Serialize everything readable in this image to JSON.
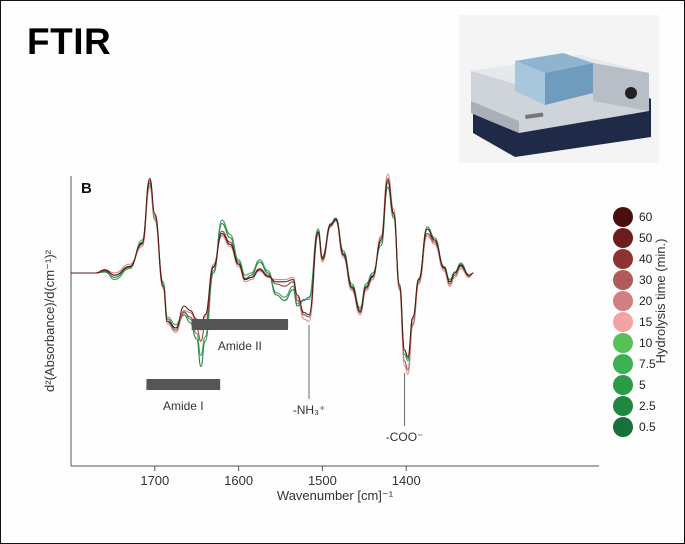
{
  "slide": {
    "title": "FTIR"
  },
  "chart_data": {
    "type": "line",
    "panel_label": "B",
    "title": "",
    "xlabel": "Wavenumber [cm]⁻¹",
    "ylabel": "d²(Absorbance)/d(cm⁻¹)²",
    "xlim": [
      1800,
      1170
    ],
    "x_reversed": true,
    "xticks": [
      1700,
      1600,
      1500,
      1400
    ],
    "grid": false,
    "legend_position": "right",
    "legend_title": "Hydrolysis time (min.)",
    "legend_entries": [
      {
        "label": "60",
        "color": "#4a1010"
      },
      {
        "label": "50",
        "color": "#6e1c1c"
      },
      {
        "label": "40",
        "color": "#8f3232"
      },
      {
        "label": "30",
        "color": "#b05a5a"
      },
      {
        "label": "20",
        "color": "#d27f7f"
      },
      {
        "label": "15",
        "color": "#f2a3a3"
      },
      {
        "label": "10",
        "color": "#58c05a"
      },
      {
        "label": "7.5",
        "color": "#3fb052"
      },
      {
        "label": "5",
        "color": "#2a9c48"
      },
      {
        "label": "2.5",
        "color": "#1f8840"
      },
      {
        "label": "0.5",
        "color": "#177238"
      }
    ],
    "annotations": [
      {
        "label": "Amide I",
        "x_range": [
          1710,
          1622
        ],
        "kind": "bar"
      },
      {
        "label": "Amide II",
        "x_range": [
          1656,
          1541
        ],
        "kind": "bar"
      },
      {
        "label": "-NH₃⁺",
        "x": 1516,
        "kind": "line"
      },
      {
        "label": "-COO⁻",
        "x": 1402,
        "kind": "line"
      }
    ],
    "series": [
      {
        "color": "#177238",
        "values": [
          [
            1800,
            0
          ],
          [
            1770,
            0
          ],
          [
            1760,
            1
          ],
          [
            1748,
            -4
          ],
          [
            1730,
            5
          ],
          [
            1715,
            28
          ],
          [
            1706,
            82
          ],
          [
            1700,
            50
          ],
          [
            1690,
            -10
          ],
          [
            1685,
            -42
          ],
          [
            1675,
            -50
          ],
          [
            1665,
            -38
          ],
          [
            1658,
            -45
          ],
          [
            1650,
            -60
          ],
          [
            1645,
            -85
          ],
          [
            1640,
            -62
          ],
          [
            1630,
            0
          ],
          [
            1620,
            45
          ],
          [
            1610,
            32
          ],
          [
            1600,
            10
          ],
          [
            1592,
            -5
          ],
          [
            1585,
            -2
          ],
          [
            1575,
            10
          ],
          [
            1565,
            0
          ],
          [
            1555,
            -20
          ],
          [
            1545,
            -25
          ],
          [
            1535,
            -15
          ],
          [
            1530,
            -30
          ],
          [
            1522,
            -25
          ],
          [
            1516,
            -22
          ],
          [
            1505,
            40
          ],
          [
            1500,
            15
          ],
          [
            1490,
            45
          ],
          [
            1484,
            50
          ],
          [
            1475,
            20
          ],
          [
            1465,
            -10
          ],
          [
            1455,
            -32
          ],
          [
            1448,
            -10
          ],
          [
            1440,
            0
          ],
          [
            1430,
            25
          ],
          [
            1422,
            78
          ],
          [
            1415,
            50
          ],
          [
            1408,
            -10
          ],
          [
            1402,
            -70
          ],
          [
            1398,
            -78
          ],
          [
            1392,
            -40
          ],
          [
            1385,
            -5
          ],
          [
            1375,
            40
          ],
          [
            1366,
            30
          ],
          [
            1355,
            5
          ],
          [
            1348,
            -8
          ],
          [
            1342,
            0
          ],
          [
            1335,
            8
          ],
          [
            1325,
            -2
          ],
          [
            1320,
            0
          ]
        ]
      },
      {
        "color": "#2a9c48",
        "values": [
          [
            1800,
            0
          ],
          [
            1770,
            0
          ],
          [
            1760,
            2
          ],
          [
            1748,
            -6
          ],
          [
            1730,
            4
          ],
          [
            1715,
            30
          ],
          [
            1706,
            80
          ],
          [
            1700,
            48
          ],
          [
            1690,
            -8
          ],
          [
            1685,
            -40
          ],
          [
            1675,
            -47
          ],
          [
            1665,
            -35
          ],
          [
            1658,
            -42
          ],
          [
            1650,
            -55
          ],
          [
            1645,
            -75
          ],
          [
            1640,
            -58
          ],
          [
            1630,
            2
          ],
          [
            1620,
            48
          ],
          [
            1610,
            35
          ],
          [
            1600,
            12
          ],
          [
            1592,
            -2
          ],
          [
            1585,
            0
          ],
          [
            1575,
            12
          ],
          [
            1565,
            2
          ],
          [
            1555,
            -18
          ],
          [
            1545,
            -22
          ],
          [
            1535,
            -12
          ],
          [
            1530,
            -28
          ],
          [
            1522,
            -24
          ],
          [
            1516,
            -24
          ],
          [
            1505,
            38
          ],
          [
            1500,
            14
          ],
          [
            1490,
            44
          ],
          [
            1484,
            49
          ],
          [
            1475,
            18
          ],
          [
            1465,
            -12
          ],
          [
            1455,
            -34
          ],
          [
            1448,
            -12
          ],
          [
            1440,
            -2
          ],
          [
            1430,
            28
          ],
          [
            1422,
            82
          ],
          [
            1415,
            52
          ],
          [
            1408,
            -12
          ],
          [
            1402,
            -74
          ],
          [
            1398,
            -80
          ],
          [
            1392,
            -42
          ],
          [
            1385,
            -6
          ],
          [
            1375,
            42
          ],
          [
            1366,
            32
          ],
          [
            1355,
            6
          ],
          [
            1348,
            -6
          ],
          [
            1342,
            1
          ],
          [
            1335,
            9
          ],
          [
            1325,
            -2
          ],
          [
            1320,
            0
          ]
        ]
      },
      {
        "color": "#8f3232",
        "values": [
          [
            1800,
            0
          ],
          [
            1770,
            0
          ],
          [
            1760,
            2
          ],
          [
            1748,
            -2
          ],
          [
            1730,
            6
          ],
          [
            1715,
            26
          ],
          [
            1706,
            84
          ],
          [
            1700,
            52
          ],
          [
            1690,
            -12
          ],
          [
            1685,
            -44
          ],
          [
            1675,
            -52
          ],
          [
            1665,
            -36
          ],
          [
            1658,
            -40
          ],
          [
            1650,
            -50
          ],
          [
            1645,
            -62
          ],
          [
            1640,
            -48
          ],
          [
            1630,
            5
          ],
          [
            1620,
            38
          ],
          [
            1610,
            28
          ],
          [
            1600,
            8
          ],
          [
            1592,
            -6
          ],
          [
            1585,
            -4
          ],
          [
            1575,
            4
          ],
          [
            1565,
            -2
          ],
          [
            1555,
            -10
          ],
          [
            1545,
            -12
          ],
          [
            1535,
            -8
          ],
          [
            1530,
            -25
          ],
          [
            1522,
            -38
          ],
          [
            1516,
            -40
          ],
          [
            1505,
            36
          ],
          [
            1500,
            12
          ],
          [
            1490,
            43
          ],
          [
            1484,
            48
          ],
          [
            1475,
            16
          ],
          [
            1465,
            -14
          ],
          [
            1455,
            -36
          ],
          [
            1448,
            -14
          ],
          [
            1440,
            -4
          ],
          [
            1430,
            32
          ],
          [
            1422,
            86
          ],
          [
            1415,
            55
          ],
          [
            1408,
            -14
          ],
          [
            1402,
            -80
          ],
          [
            1398,
            -88
          ],
          [
            1392,
            -46
          ],
          [
            1385,
            -8
          ],
          [
            1375,
            36
          ],
          [
            1366,
            28
          ],
          [
            1355,
            4
          ],
          [
            1348,
            -10
          ],
          [
            1342,
            -2
          ],
          [
            1335,
            6
          ],
          [
            1325,
            -3
          ],
          [
            1320,
            0
          ]
        ]
      },
      {
        "color": "#d27f7f",
        "values": [
          [
            1800,
            0
          ],
          [
            1770,
            0
          ],
          [
            1760,
            3
          ],
          [
            1748,
            0
          ],
          [
            1730,
            8
          ],
          [
            1715,
            24
          ],
          [
            1706,
            78
          ],
          [
            1700,
            50
          ],
          [
            1690,
            -14
          ],
          [
            1685,
            -46
          ],
          [
            1675,
            -54
          ],
          [
            1665,
            -34
          ],
          [
            1658,
            -36
          ],
          [
            1650,
            -44
          ],
          [
            1645,
            -52
          ],
          [
            1640,
            -40
          ],
          [
            1630,
            8
          ],
          [
            1620,
            34
          ],
          [
            1610,
            24
          ],
          [
            1600,
            6
          ],
          [
            1592,
            -8
          ],
          [
            1585,
            -6
          ],
          [
            1575,
            2
          ],
          [
            1565,
            -4
          ],
          [
            1555,
            -6
          ],
          [
            1545,
            -6
          ],
          [
            1535,
            -4
          ],
          [
            1530,
            -22
          ],
          [
            1522,
            -42
          ],
          [
            1516,
            -44
          ],
          [
            1505,
            34
          ],
          [
            1500,
            10
          ],
          [
            1490,
            42
          ],
          [
            1484,
            47
          ],
          [
            1475,
            14
          ],
          [
            1465,
            -16
          ],
          [
            1455,
            -38
          ],
          [
            1448,
            -16
          ],
          [
            1440,
            -6
          ],
          [
            1430,
            34
          ],
          [
            1422,
            90
          ],
          [
            1415,
            58
          ],
          [
            1408,
            -16
          ],
          [
            1402,
            -84
          ],
          [
            1398,
            -92
          ],
          [
            1392,
            -48
          ],
          [
            1385,
            -10
          ],
          [
            1375,
            34
          ],
          [
            1366,
            26
          ],
          [
            1355,
            2
          ],
          [
            1348,
            -12
          ],
          [
            1342,
            -4
          ],
          [
            1335,
            4
          ],
          [
            1325,
            -4
          ],
          [
            1320,
            0
          ]
        ]
      },
      {
        "color": "#4a1010",
        "values": [
          [
            1800,
            0
          ],
          [
            1770,
            0
          ],
          [
            1760,
            3
          ],
          [
            1748,
            -2
          ],
          [
            1730,
            6
          ],
          [
            1715,
            27
          ],
          [
            1706,
            86
          ],
          [
            1700,
            54
          ],
          [
            1690,
            -12
          ],
          [
            1685,
            -44
          ],
          [
            1675,
            -50
          ],
          [
            1665,
            -30
          ],
          [
            1658,
            -34
          ],
          [
            1650,
            -42
          ],
          [
            1645,
            -50
          ],
          [
            1640,
            -38
          ],
          [
            1630,
            6
          ],
          [
            1620,
            36
          ],
          [
            1610,
            26
          ],
          [
            1600,
            8
          ],
          [
            1592,
            -6
          ],
          [
            1585,
            -4
          ],
          [
            1575,
            3
          ],
          [
            1565,
            -3
          ],
          [
            1555,
            -8
          ],
          [
            1545,
            -8
          ],
          [
            1535,
            -6
          ],
          [
            1530,
            -20
          ],
          [
            1522,
            -36
          ],
          [
            1516,
            -38
          ],
          [
            1505,
            37
          ],
          [
            1500,
            13
          ],
          [
            1490,
            44
          ],
          [
            1484,
            49
          ],
          [
            1475,
            17
          ],
          [
            1465,
            -13
          ],
          [
            1455,
            -35
          ],
          [
            1448,
            -13
          ],
          [
            1440,
            -3
          ],
          [
            1430,
            30
          ],
          [
            1422,
            84
          ],
          [
            1415,
            54
          ],
          [
            1408,
            -12
          ],
          [
            1402,
            -70
          ],
          [
            1398,
            -76
          ],
          [
            1392,
            -40
          ],
          [
            1385,
            -6
          ],
          [
            1375,
            40
          ],
          [
            1366,
            30
          ],
          [
            1355,
            5
          ],
          [
            1348,
            -8
          ],
          [
            1342,
            0
          ],
          [
            1335,
            7
          ],
          [
            1325,
            -2
          ],
          [
            1320,
            0
          ]
        ]
      }
    ]
  }
}
